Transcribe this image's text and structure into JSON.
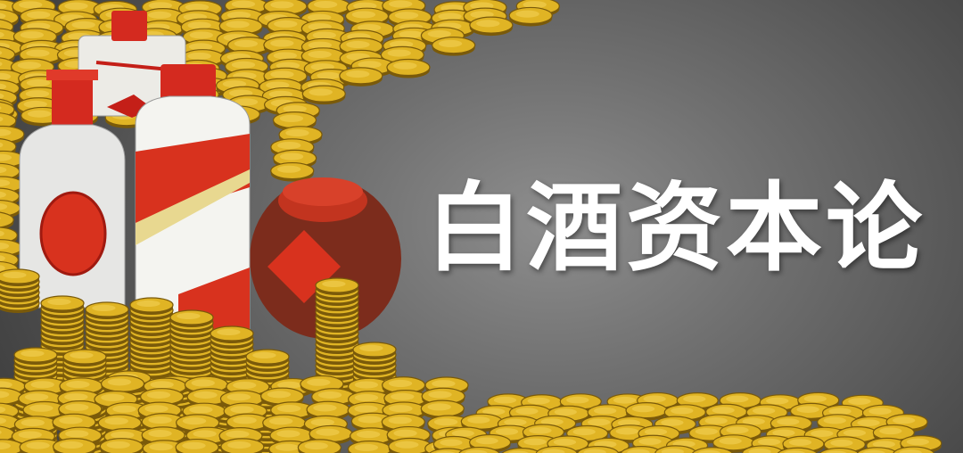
{
  "headline": {
    "text": "白酒资本论"
  },
  "palette": {
    "coin_fill": "#e0b424",
    "coin_edge": "#7a5a0a",
    "coin_light": "#f4d45a",
    "cap_red": "#d42a1f",
    "bottle_white": "#f2f2ee",
    "jar_brown": "#7c2c1c",
    "label_red": "#d8321e",
    "label_gold": "#e8d890",
    "title_color": "#ffffff"
  },
  "illustration": {
    "objects": [
      "coin-pile-icon",
      "coin-stack-icon",
      "liquor-bottle-icon",
      "wine-jar-icon"
    ]
  }
}
